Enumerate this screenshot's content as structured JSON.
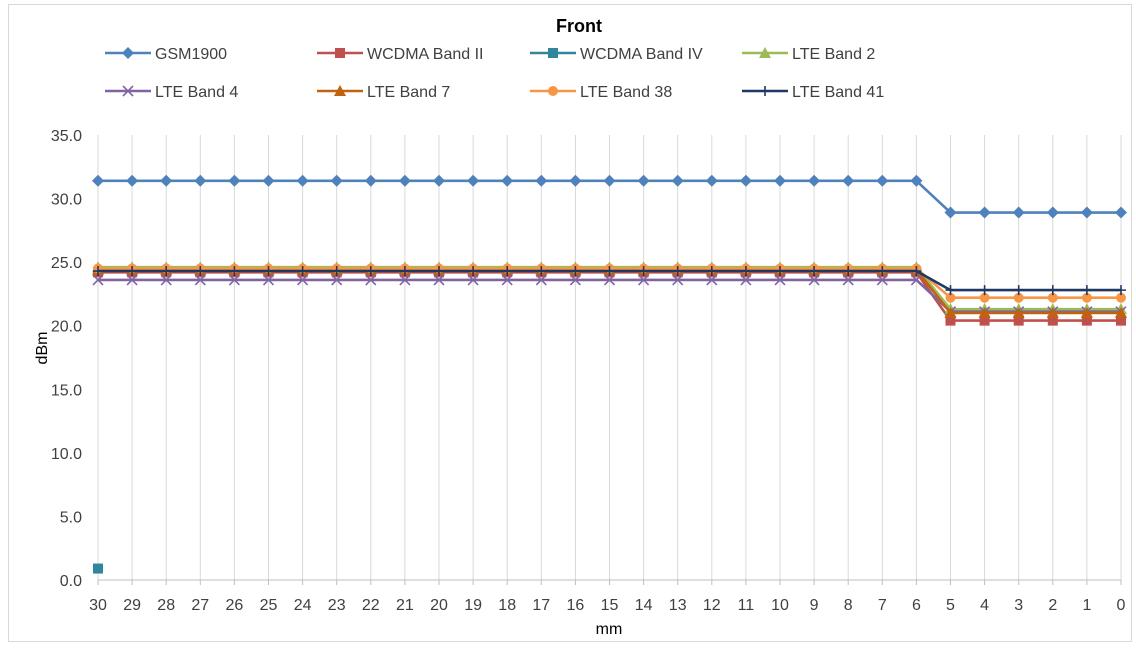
{
  "chart_data": {
    "type": "line",
    "title": "Front",
    "xlabel": "mm",
    "ylabel": "dBm",
    "ylim": [
      0,
      35
    ],
    "yticks": [
      "0.0",
      "5.0",
      "10.0",
      "15.0",
      "20.0",
      "25.0",
      "30.0",
      "35.0"
    ],
    "categories": [
      "30",
      "29",
      "28",
      "27",
      "26",
      "25",
      "24",
      "23",
      "22",
      "21",
      "20",
      "19",
      "18",
      "17",
      "16",
      "15",
      "14",
      "13",
      "12",
      "11",
      "10",
      "9",
      "8",
      "7",
      "6",
      "5",
      "4",
      "3",
      "2",
      "1",
      "0"
    ],
    "grid": "vertical",
    "legend_position": "top",
    "series": [
      {
        "name": "GSM1900",
        "color": "#4F81BD",
        "marker": "diamond",
        "values": [
          31.4,
          31.4,
          31.4,
          31.4,
          31.4,
          31.4,
          31.4,
          31.4,
          31.4,
          31.4,
          31.4,
          31.4,
          31.4,
          31.4,
          31.4,
          31.4,
          31.4,
          31.4,
          31.4,
          31.4,
          31.4,
          31.4,
          31.4,
          31.4,
          31.4,
          28.9,
          28.9,
          28.9,
          28.9,
          28.9,
          28.9
        ]
      },
      {
        "name": "WCDMA Band II",
        "color": "#C0504D",
        "marker": "square",
        "values": [
          24.2,
          24.2,
          24.2,
          24.2,
          24.2,
          24.2,
          24.2,
          24.2,
          24.2,
          24.2,
          24.2,
          24.2,
          24.2,
          24.2,
          24.2,
          24.2,
          24.2,
          24.2,
          24.2,
          24.2,
          24.2,
          24.2,
          24.2,
          24.2,
          24.2,
          20.4,
          20.4,
          20.4,
          20.4,
          20.4,
          20.4
        ]
      },
      {
        "name": "WCDMA Band IV",
        "color": "#31859C",
        "marker": "square",
        "values": [
          0.9,
          null,
          null,
          null,
          null,
          null,
          null,
          null,
          null,
          null,
          null,
          null,
          null,
          null,
          null,
          null,
          null,
          null,
          null,
          null,
          null,
          null,
          null,
          null,
          null,
          null,
          null,
          null,
          null,
          null,
          null
        ]
      },
      {
        "name": "LTE Band 2",
        "color": "#9BBB59",
        "marker": "triangle",
        "values": [
          24.6,
          24.6,
          24.6,
          24.6,
          24.6,
          24.6,
          24.6,
          24.6,
          24.6,
          24.6,
          24.6,
          24.6,
          24.6,
          24.6,
          24.6,
          24.6,
          24.6,
          24.6,
          24.6,
          24.6,
          24.6,
          24.6,
          24.6,
          24.6,
          24.6,
          21.3,
          21.3,
          21.3,
          21.3,
          21.3,
          21.3
        ]
      },
      {
        "name": "LTE Band 4",
        "color": "#8064A2",
        "marker": "x",
        "values": [
          23.6,
          23.6,
          23.6,
          23.6,
          23.6,
          23.6,
          23.6,
          23.6,
          23.6,
          23.6,
          23.6,
          23.6,
          23.6,
          23.6,
          23.6,
          23.6,
          23.6,
          23.6,
          23.6,
          23.6,
          23.6,
          23.6,
          23.6,
          23.6,
          23.6,
          21.1,
          21.1,
          21.1,
          21.1,
          21.1,
          21.1
        ]
      },
      {
        "name": "LTE Band 7",
        "color": "#C0620F",
        "marker": "triangle",
        "values": [
          24.4,
          24.4,
          24.4,
          24.4,
          24.4,
          24.4,
          24.4,
          24.4,
          24.4,
          24.4,
          24.4,
          24.4,
          24.4,
          24.4,
          24.4,
          24.4,
          24.4,
          24.4,
          24.4,
          24.4,
          24.4,
          24.4,
          24.4,
          24.4,
          24.4,
          21.0,
          21.0,
          21.0,
          21.0,
          21.0,
          21.0
        ]
      },
      {
        "name": "LTE Band 38",
        "color": "#F79646",
        "marker": "circle",
        "values": [
          24.5,
          24.5,
          24.5,
          24.5,
          24.5,
          24.5,
          24.5,
          24.5,
          24.5,
          24.5,
          24.5,
          24.5,
          24.5,
          24.5,
          24.5,
          24.5,
          24.5,
          24.5,
          24.5,
          24.5,
          24.5,
          24.5,
          24.5,
          24.5,
          24.5,
          22.2,
          22.2,
          22.2,
          22.2,
          22.2,
          22.2
        ]
      },
      {
        "name": "LTE Band 41",
        "color": "#1F3864",
        "marker": "plus",
        "values": [
          24.3,
          24.3,
          24.3,
          24.3,
          24.3,
          24.3,
          24.3,
          24.3,
          24.3,
          24.3,
          24.3,
          24.3,
          24.3,
          24.3,
          24.3,
          24.3,
          24.3,
          24.3,
          24.3,
          24.3,
          24.3,
          24.3,
          24.3,
          24.3,
          24.3,
          22.8,
          22.8,
          22.8,
          22.8,
          22.8,
          22.8
        ]
      }
    ]
  }
}
